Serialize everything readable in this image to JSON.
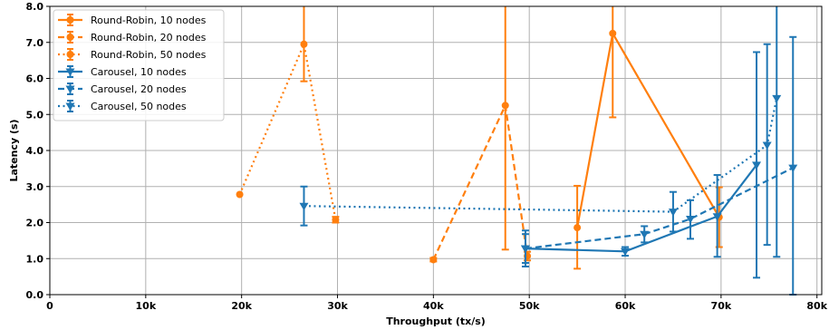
{
  "chart_data": {
    "type": "line",
    "title": "",
    "xlabel": "Throughput (tx/s)",
    "ylabel": "Latency (s)",
    "xlim": [
      0,
      80500
    ],
    "ylim": [
      0,
      8.0
    ],
    "xticks": [
      0,
      10000,
      20000,
      30000,
      40000,
      50000,
      60000,
      70000,
      80000
    ],
    "xtick_labels": [
      "0",
      "10k",
      "20k",
      "30k",
      "40k",
      "50k",
      "60k",
      "70k",
      "80k"
    ],
    "yticks": [
      0,
      1,
      2,
      3,
      4,
      5,
      6,
      7,
      8
    ],
    "ytick_labels": [
      "0.0",
      "1.0",
      "2.0",
      "3.0",
      "4.0",
      "5.0",
      "6.0",
      "7.0",
      "8.0"
    ],
    "grid": true,
    "legend_position": "top-left",
    "colors": {
      "orange": "#ff7f0e",
      "blue": "#1f77b4"
    },
    "series": [
      {
        "name": "Round-Robin, 10 nodes",
        "color": "#ff7f0e",
        "dash": "solid",
        "marker": "circle",
        "x": [
          55000,
          58700,
          69800
        ],
        "y": [
          1.86,
          7.25,
          2.15
        ],
        "err_low": [
          0.72,
          4.92,
          1.32
        ],
        "err_high": [
          3.02,
          8.2,
          2.98
        ]
      },
      {
        "name": "Round-Robin, 20 nodes",
        "color": "#ff7f0e",
        "dash": "dashed",
        "marker": "circle",
        "x": [
          40000,
          47500,
          49800
        ],
        "y": [
          0.97,
          5.25,
          1.07
        ],
        "err_low": [
          0.92,
          1.25,
          0.95
        ],
        "err_high": [
          1.02,
          8.2,
          1.19
        ]
      },
      {
        "name": "Round-Robin, 50 nodes",
        "color": "#ff7f0e",
        "dash": "dotted",
        "marker": "circle",
        "x": [
          19800,
          26500,
          29800
        ],
        "y": [
          2.78,
          6.95,
          2.08
        ],
        "err_low": [
          2.78,
          5.92,
          2.0
        ],
        "err_high": [
          2.78,
          8.2,
          2.16
        ]
      },
      {
        "name": "Carousel, 10 nodes",
        "color": "#1f77b4",
        "dash": "solid",
        "marker": "tri-down",
        "x": [
          49600,
          60000,
          69600,
          73700
        ],
        "y": [
          1.28,
          1.2,
          2.17,
          3.6
        ],
        "err_low": [
          0.88,
          1.08,
          1.05,
          0.47
        ],
        "err_high": [
          1.68,
          1.32,
          3.32,
          6.73
        ]
      },
      {
        "name": "Carousel, 20 nodes",
        "color": "#1f77b4",
        "dash": "dashed",
        "marker": "tri-down",
        "x": [
          49600,
          62000,
          66800,
          77500
        ],
        "y": [
          1.28,
          1.68,
          2.1,
          3.52
        ],
        "err_low": [
          0.78,
          1.45,
          1.55,
          0.0
        ],
        "err_high": [
          1.78,
          1.9,
          2.62,
          7.15
        ]
      },
      {
        "name": "Carousel, 50 nodes",
        "color": "#1f77b4",
        "dash": "dotted",
        "marker": "tri-down",
        "x": [
          26500,
          65000,
          74800,
          75800
        ],
        "y": [
          2.46,
          2.3,
          4.15,
          5.45
        ],
        "err_low": [
          1.92,
          1.75,
          1.38,
          1.05
        ],
        "err_high": [
          3.0,
          2.85,
          6.95,
          8.2
        ]
      }
    ]
  }
}
